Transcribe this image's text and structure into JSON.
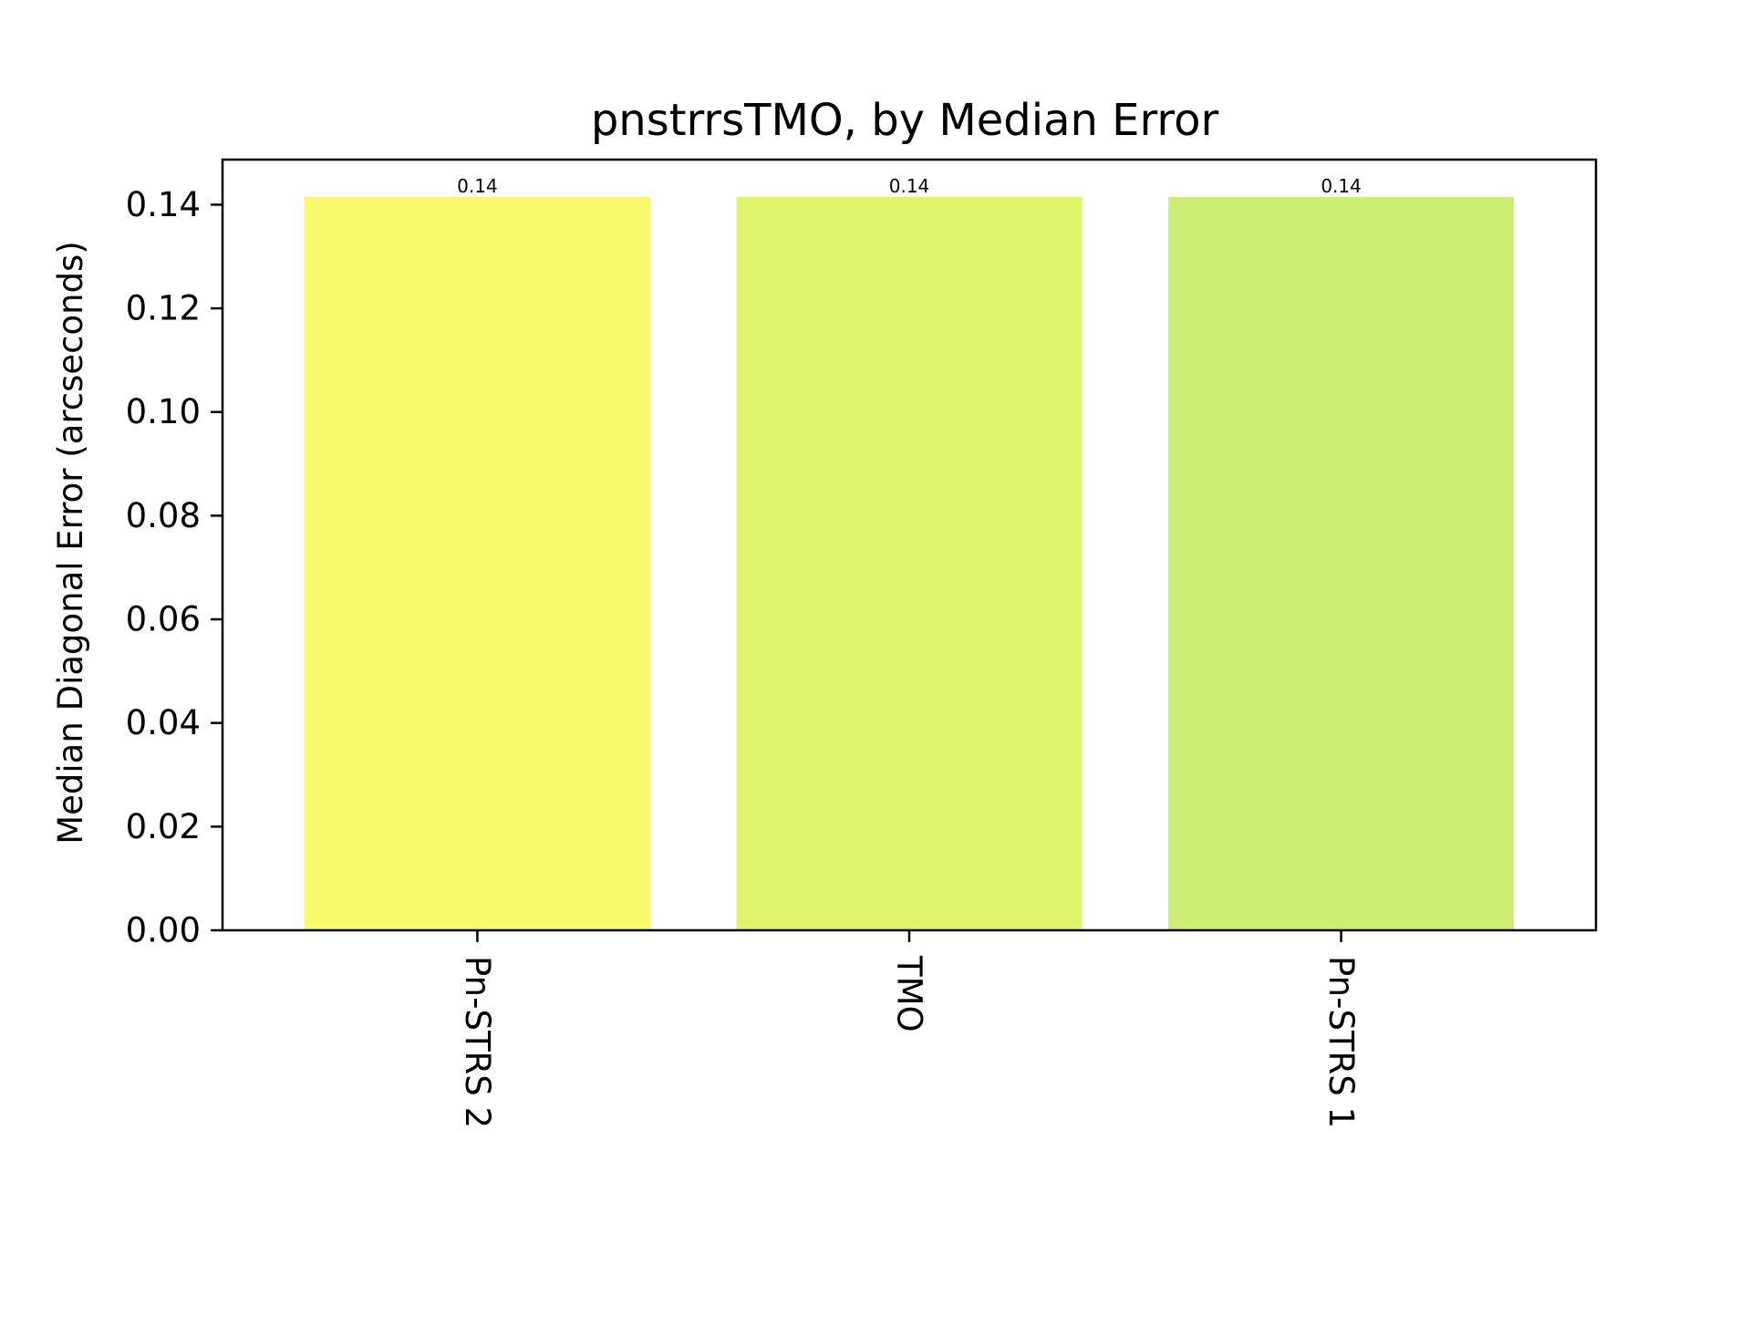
{
  "chart_data": {
    "type": "bar",
    "title": "pnstrrsTMO, by Median Error",
    "xlabel": "",
    "ylabel": "Median Diagonal Error (arcseconds)",
    "categories": [
      "Pn-STRS 2",
      "TMO",
      "Pn-STRS 1"
    ],
    "values": [
      0.1415,
      0.1415,
      0.1415
    ],
    "bar_labels": [
      "0.14",
      "0.14",
      "0.14"
    ],
    "colors": [
      "#f7f86b",
      "#dff36c",
      "#ccee73"
    ],
    "ylim": [
      0,
      0.1487
    ],
    "yticks": [
      "0.00",
      "0.02",
      "0.04",
      "0.06",
      "0.08",
      "0.10",
      "0.12",
      "0.14"
    ],
    "ytick_values": [
      0,
      0.02,
      0.04,
      0.06,
      0.08,
      0.1,
      0.12,
      0.14
    ],
    "grid": false,
    "legend": "none",
    "xtick_rotation": "vertical"
  }
}
